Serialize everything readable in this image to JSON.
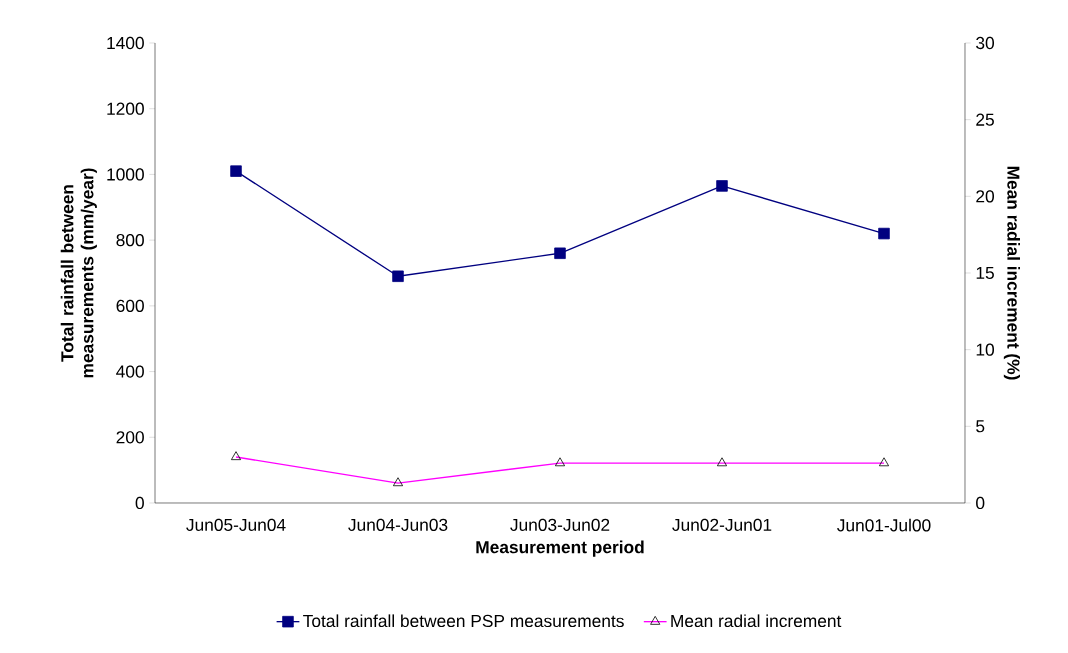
{
  "chart_data": {
    "type": "line",
    "xlabel": "Measurement period",
    "ylabel": "Total rainfall between measurements (mm/year)",
    "y2label": "Mean radial increment (%)",
    "categories": [
      "Jun05-Jun04",
      "Jun04-Jun03",
      "Jun03-Jun02",
      "Jun02-Jun01",
      "Jun01-Jul00"
    ],
    "series": [
      {
        "name": "Total rainfall between PSP measurements",
        "color": "#000080",
        "marker": "square",
        "values": [
          1010,
          690,
          760,
          965,
          820
        ]
      },
      {
        "name": "Mean radial increment",
        "color": "#ff00ff",
        "marker": "triangle",
        "axis": "y2",
        "values": [
          3.0,
          1.3,
          2.6,
          2.6,
          2.6
        ]
      }
    ],
    "ylim": [
      0,
      1400
    ],
    "yticks": [
      0,
      200,
      400,
      600,
      800,
      1000,
      1200,
      1400
    ],
    "y2lim": [
      0,
      30
    ],
    "y2ticks": [
      0,
      5,
      10,
      15,
      20,
      25,
      30
    ],
    "legend": "bottom",
    "grid": false
  }
}
